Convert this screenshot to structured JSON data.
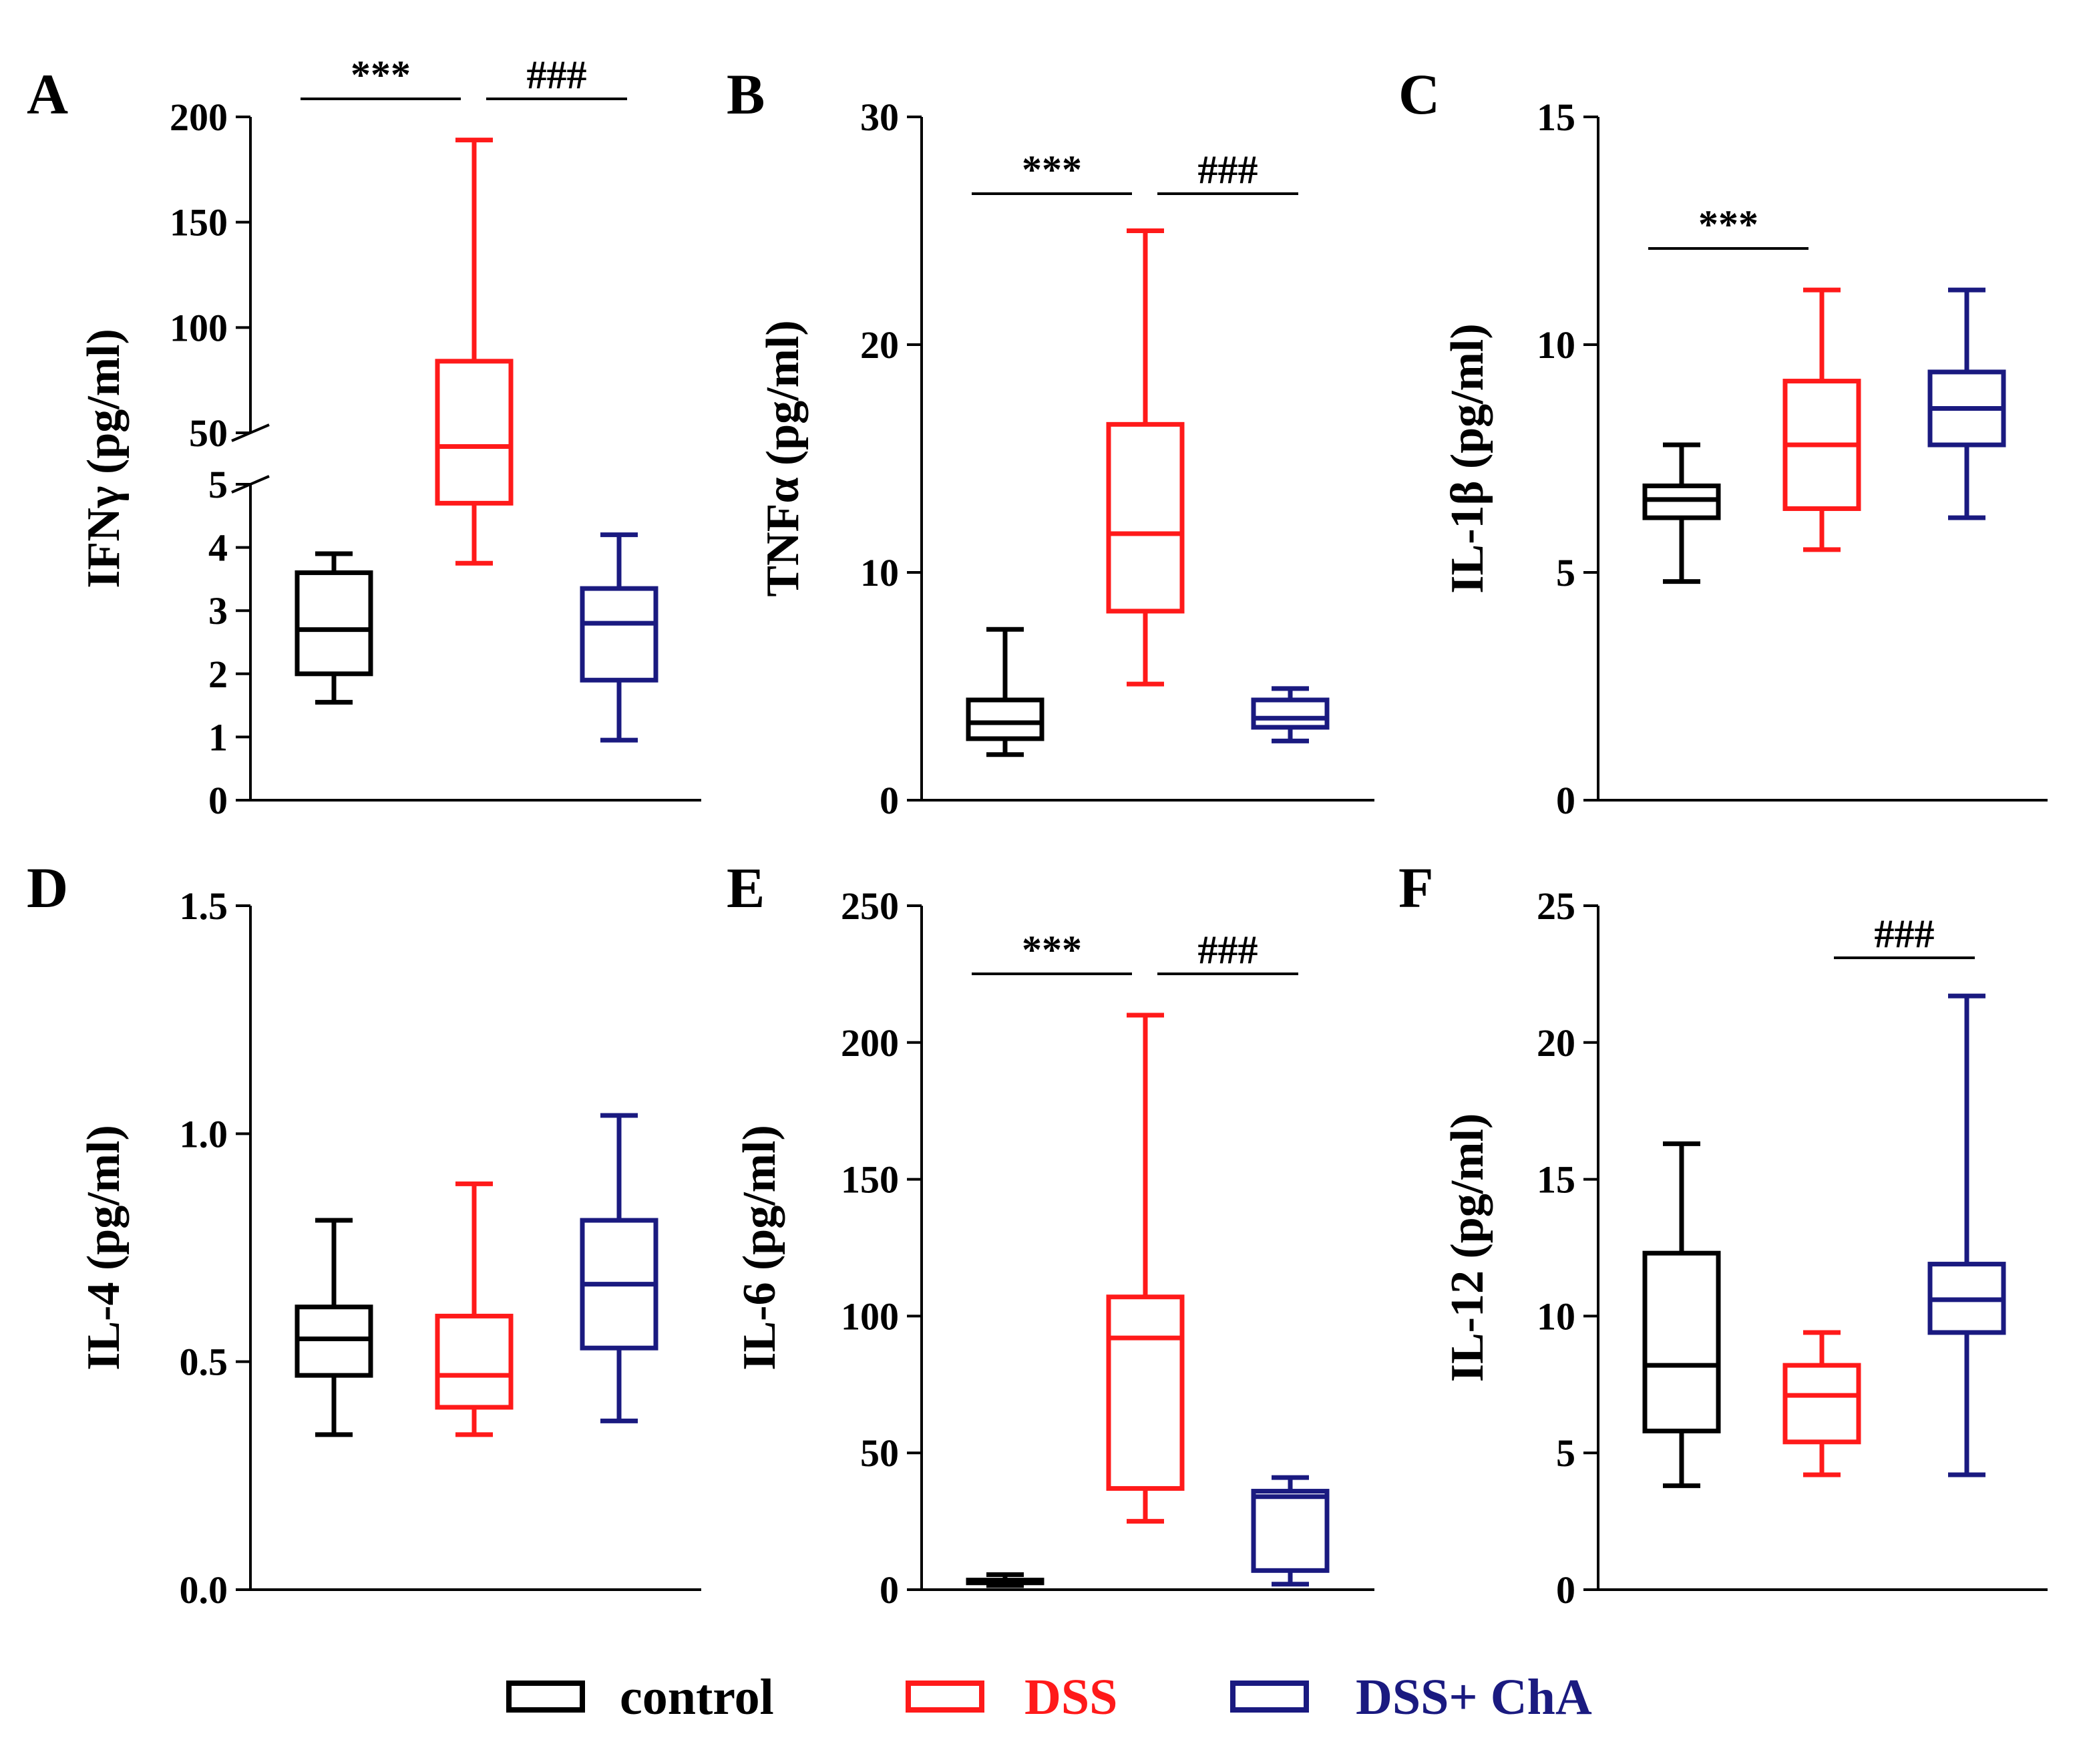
{
  "chart_data": {
    "type": "boxplot",
    "legend": [
      {
        "label": "control",
        "color": "#000000"
      },
      {
        "label": "DSS",
        "color": "#ff1a1a"
      },
      {
        "label": "DSS+ ChA",
        "color": "#1a1a80"
      }
    ],
    "panels": [
      {
        "id": "A",
        "ylabel": "IFNγ (pg/ml)",
        "broken_axis": true,
        "lower": {
          "ylim": [
            0,
            5
          ],
          "ticks": [
            0,
            1,
            2,
            3,
            4,
            5
          ]
        },
        "upper": {
          "ylim": [
            50,
            200
          ],
          "ticks": [
            50,
            100,
            150,
            200
          ]
        },
        "boxes": [
          {
            "group": "control",
            "min": 1.55,
            "q1": 2.0,
            "median": 2.7,
            "q3": 3.6,
            "max": 3.9
          },
          {
            "group": "DSS",
            "min": 3.75,
            "q1": 4.7,
            "median": 38,
            "q3": 84,
            "max": 189
          },
          {
            "group": "DSS+ ChA",
            "min": 0.95,
            "q1": 1.9,
            "median": 2.8,
            "q3": 3.35,
            "max": 4.2
          }
        ],
        "significance": [
          {
            "label": "***",
            "from": 0,
            "to": 1
          },
          {
            "label": "###",
            "from": 1,
            "to": 2
          }
        ]
      },
      {
        "id": "B",
        "ylabel": "TNFα (pg/ml)",
        "ylim": [
          0,
          30
        ],
        "ticks": [
          0,
          10,
          20,
          30
        ],
        "boxes": [
          {
            "group": "control",
            "min": 2.0,
            "q1": 2.7,
            "median": 3.4,
            "q3": 4.4,
            "max": 7.5
          },
          {
            "group": "DSS",
            "min": 5.1,
            "q1": 8.3,
            "median": 11.7,
            "q3": 16.5,
            "max": 25.0
          },
          {
            "group": "DSS+ ChA",
            "min": 2.6,
            "q1": 3.2,
            "median": 3.6,
            "q3": 4.4,
            "max": 4.9
          }
        ],
        "significance": [
          {
            "label": "***",
            "from": 0,
            "to": 1
          },
          {
            "label": "###",
            "from": 1,
            "to": 2
          }
        ]
      },
      {
        "id": "C",
        "ylabel": "IL-1β (pg/ml)",
        "ylim": [
          0,
          15
        ],
        "ticks": [
          0,
          5,
          10,
          15
        ],
        "boxes": [
          {
            "group": "control",
            "min": 4.8,
            "q1": 6.2,
            "median": 6.6,
            "q3": 6.9,
            "max": 7.8
          },
          {
            "group": "DSS",
            "min": 5.5,
            "q1": 6.4,
            "median": 7.8,
            "q3": 9.2,
            "max": 11.2
          },
          {
            "group": "DSS+ ChA",
            "min": 6.2,
            "q1": 7.8,
            "median": 8.6,
            "q3": 9.4,
            "max": 11.2
          }
        ],
        "significance": [
          {
            "label": "***",
            "from": 0,
            "to": 1
          }
        ]
      },
      {
        "id": "D",
        "ylabel": "IL-4 (pg/ml)",
        "ylim": [
          0,
          1.5
        ],
        "ticks": [
          0.0,
          0.5,
          1.0,
          1.5
        ],
        "tick_labels": [
          "0.0",
          "0.5",
          "1.0",
          "1.5"
        ],
        "boxes": [
          {
            "group": "control",
            "min": 0.34,
            "q1": 0.47,
            "median": 0.55,
            "q3": 0.62,
            "max": 0.81
          },
          {
            "group": "DSS",
            "min": 0.34,
            "q1": 0.4,
            "median": 0.47,
            "q3": 0.6,
            "max": 0.89
          },
          {
            "group": "DSS+ ChA",
            "min": 0.37,
            "q1": 0.53,
            "median": 0.67,
            "q3": 0.81,
            "max": 1.04
          }
        ],
        "significance": []
      },
      {
        "id": "E",
        "ylabel": "IL-6 (pg/ml)",
        "ylim": [
          0,
          250
        ],
        "ticks": [
          0,
          50,
          100,
          150,
          200,
          250
        ],
        "boxes": [
          {
            "group": "control",
            "min": 1.5,
            "q1": 2.5,
            "median": 3.0,
            "q3": 3.5,
            "max": 5.5
          },
          {
            "group": "DSS",
            "min": 25,
            "q1": 37,
            "median": 92,
            "q3": 107,
            "max": 210
          },
          {
            "group": "DSS+ ChA",
            "min": 2,
            "q1": 7,
            "median": 34,
            "q3": 36,
            "max": 41
          }
        ],
        "significance": [
          {
            "label": "***",
            "from": 0,
            "to": 1
          },
          {
            "label": "###",
            "from": 1,
            "to": 2
          }
        ]
      },
      {
        "id": "F",
        "ylabel": "IL-12 (pg/ml)",
        "ylim": [
          0,
          25
        ],
        "ticks": [
          0,
          5,
          10,
          15,
          20,
          25
        ],
        "boxes": [
          {
            "group": "control",
            "min": 3.8,
            "q1": 5.8,
            "median": 8.2,
            "q3": 12.3,
            "max": 16.3
          },
          {
            "group": "DSS",
            "min": 4.2,
            "q1": 5.4,
            "median": 7.1,
            "q3": 8.2,
            "max": 9.4
          },
          {
            "group": "DSS+ ChA",
            "min": 4.2,
            "q1": 9.4,
            "median": 10.6,
            "q3": 11.9,
            "max": 21.7
          }
        ],
        "significance": [
          {
            "label": "###",
            "from": 1,
            "to": 2
          }
        ]
      }
    ]
  }
}
